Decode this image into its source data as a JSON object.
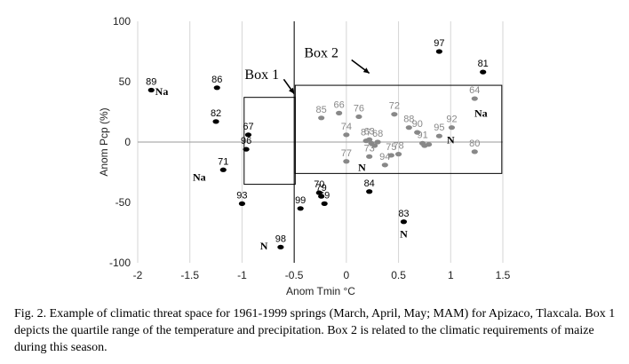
{
  "chart_data": {
    "type": "scatter",
    "xlabel": "Anom Tmin °C",
    "ylabel": "Anom Pcp (%)",
    "xlim": [
      -2,
      1.5
    ],
    "ylim": [
      -100,
      100
    ],
    "xticks": [
      -2,
      -1.5,
      -1,
      -0.5,
      0,
      0.5,
      1,
      1.5
    ],
    "xtick_labels": [
      "-2",
      "-1.5",
      "-1",
      "-0.5",
      "0",
      "0.5",
      "1",
      "1.5"
    ],
    "yticks": [
      -100,
      -50,
      0,
      50,
      100
    ],
    "ytick_labels": [
      "-100",
      "-50",
      "0",
      "50",
      "100"
    ],
    "grid": "vertical",
    "colors": {
      "black_points": "#000000",
      "gray_points": "#888888",
      "box": "#000000"
    },
    "points": [
      {
        "label": "89",
        "x": -1.87,
        "y": 43,
        "color": "black"
      },
      {
        "label": "86",
        "x": -1.24,
        "y": 45,
        "color": "black"
      },
      {
        "label": "82",
        "x": -1.25,
        "y": 17,
        "color": "black"
      },
      {
        "label": "71",
        "x": -1.18,
        "y": -23,
        "color": "black"
      },
      {
        "label": "67",
        "x": -0.94,
        "y": 6,
        "color": "black"
      },
      {
        "label": "96",
        "x": -0.96,
        "y": -6,
        "color": "black"
      },
      {
        "label": "93",
        "x": -1.0,
        "y": -51,
        "color": "black"
      },
      {
        "label": "98",
        "x": -0.63,
        "y": -87,
        "color": "black"
      },
      {
        "label": "99",
        "x": -0.44,
        "y": -55,
        "color": "black"
      },
      {
        "label": "70",
        "x": -0.26,
        "y": -42,
        "color": "black"
      },
      {
        "label": "79",
        "x": -0.24,
        "y": -45,
        "color": "black"
      },
      {
        "label": "69",
        "x": -0.21,
        "y": -51,
        "color": "black"
      },
      {
        "label": "84",
        "x": 0.22,
        "y": -41,
        "color": "black"
      },
      {
        "label": "83",
        "x": 0.55,
        "y": -66,
        "color": "black"
      },
      {
        "label": "97",
        "x": 0.89,
        "y": 75,
        "color": "black"
      },
      {
        "label": "81",
        "x": 1.31,
        "y": 58,
        "color": "black"
      },
      {
        "label": "64",
        "x": 1.23,
        "y": 36,
        "color": "gray"
      },
      {
        "label": "85",
        "x": -0.24,
        "y": 20,
        "color": "gray"
      },
      {
        "label": "66",
        "x": -0.07,
        "y": 24,
        "color": "gray"
      },
      {
        "label": "76",
        "x": 0.12,
        "y": 21,
        "color": "gray"
      },
      {
        "label": "72",
        "x": 0.46,
        "y": 23,
        "color": "gray"
      },
      {
        "label": "74",
        "x": 0.0,
        "y": 6,
        "color": "gray"
      },
      {
        "label": "88",
        "x": 0.6,
        "y": 12,
        "color": "gray"
      },
      {
        "label": "90",
        "x": 0.68,
        "y": 8,
        "color": "gray"
      },
      {
        "label": "92",
        "x": 1.01,
        "y": 12,
        "color": "gray"
      },
      {
        "label": "95",
        "x": 0.89,
        "y": 5,
        "color": "gray"
      },
      {
        "label": "87",
        "x": 0.19,
        "y": 1,
        "color": "gray"
      },
      {
        "label": "63",
        "x": 0.22,
        "y": 2,
        "color": "gray"
      },
      {
        "label": "68",
        "x": 0.3,
        "y": 0,
        "color": "gray"
      },
      {
        "label": "91",
        "x": 0.73,
        "y": -1,
        "color": "gray"
      },
      {
        "label": "75",
        "x": 0.43,
        "y": -11,
        "color": "gray"
      },
      {
        "label": "78",
        "x": 0.5,
        "y": -10,
        "color": "gray"
      },
      {
        "label": "73",
        "x": 0.22,
        "y": -12,
        "color": "gray"
      },
      {
        "label": "94",
        "x": 0.37,
        "y": -19,
        "color": "gray"
      },
      {
        "label": "77",
        "x": 0.0,
        "y": -16,
        "color": "gray"
      },
      {
        "label": "80",
        "x": 1.23,
        "y": -8,
        "color": "gray"
      },
      {
        "label": "",
        "x": 0.24,
        "y": -1,
        "color": "gray"
      },
      {
        "label": "",
        "x": 0.27,
        "y": -3,
        "color": "gray"
      },
      {
        "label": "",
        "x": 0.75,
        "y": -3,
        "color": "gray"
      },
      {
        "label": "",
        "x": 0.79,
        "y": -2,
        "color": "gray"
      }
    ],
    "boxes": [
      {
        "name": "Box 1",
        "x0": -0.98,
        "x1": -0.49,
        "y0": -35,
        "y1": 37
      },
      {
        "name": "Box 2",
        "x0": -0.49,
        "x1": 1.49,
        "y0": -26,
        "y1": 47
      }
    ],
    "reference_lines": [
      {
        "axis": "x",
        "value": -0.5
      }
    ],
    "annotations": [
      {
        "text": "Na",
        "x": -1.77,
        "y": 42
      },
      {
        "text": "Na",
        "x": -1.41,
        "y": -29
      },
      {
        "text": "N",
        "x": -0.79,
        "y": -86
      },
      {
        "text": "N",
        "x": 0.55,
        "y": -76
      },
      {
        "text": "Na",
        "x": 1.29,
        "y": 24
      },
      {
        "text": "N",
        "x": 1.0,
        "y": 2
      },
      {
        "text": "N",
        "x": 0.15,
        "y": -21
      }
    ],
    "box_labels": [
      {
        "text": "Box 1",
        "x": -0.81,
        "y": 56
      },
      {
        "text": "Box 2",
        "x": -0.24,
        "y": 74
      }
    ]
  },
  "caption": "Fig. 2. Example of climatic threat space for 1961-1999 springs (March, April, May; MAM) for Apizaco, Tlaxcala. Box 1 depicts the quartile range of the temperature and precipitation. Box 2 is related to the climatic requirements of maize during this season."
}
